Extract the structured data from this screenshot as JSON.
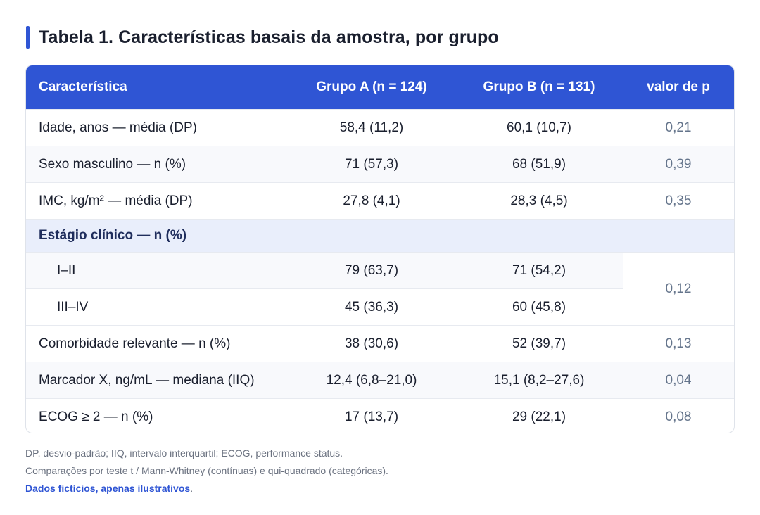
{
  "title": "Tabela 1. Características basais da amostra, por grupo",
  "columns": [
    "Característica",
    "Grupo A (n = 124)",
    "Grupo B (n = 131)",
    "valor de p"
  ],
  "rows": [
    {
      "label": "Idade, anos — média (DP)",
      "a": "58,4 (11,2)",
      "b": "60,1 (10,7)",
      "p": "0,21"
    },
    {
      "label": "Sexo masculino — n (%)",
      "a": "71 (57,3)",
      "b": "68 (51,9)",
      "p": "0,39"
    },
    {
      "label": "IMC, kg/m² — média (DP)",
      "a": "27,8 (4,1)",
      "b": "28,3 (4,5)",
      "p": "0,35"
    }
  ],
  "section": {
    "label": "Estágio clínico — n (%)",
    "p": "0,12",
    "rows": [
      {
        "label": "I–II",
        "a": "79 (63,7)",
        "b": "71 (54,2)"
      },
      {
        "label": "III–IV",
        "a": "45 (36,3)",
        "b": "60 (45,8)"
      }
    ]
  },
  "rows_after": [
    {
      "label": "Comorbidade relevante — n (%)",
      "a": "38 (30,6)",
      "b": "52 (39,7)",
      "p": "0,13"
    },
    {
      "label": "Marcador X, ng/mL — mediana (IIQ)",
      "a": "12,4 (6,8–21,0)",
      "b": "15,1 (8,2–27,6)",
      "p": "0,04"
    },
    {
      "label": "ECOG ≥ 2 — n (%)",
      "a": "17 (13,7)",
      "b": "29 (22,1)",
      "p": "0,08"
    }
  ],
  "notes": {
    "line1": "DP, desvio-padrão; IIQ, intervalo interquartil; ECOG, performance status.",
    "line2": "Comparações por teste t / Mann-Whitney (contínuas) e qui-quadrado (categóricas).",
    "line3": "Dados fictícios, apenas ilustrativos",
    "line3_end": "."
  },
  "colors": {
    "accent": "#2f55d4",
    "header_text": "#ffffff",
    "section_bg": "#e9eefb",
    "pvalue_text": "#64748b"
  }
}
